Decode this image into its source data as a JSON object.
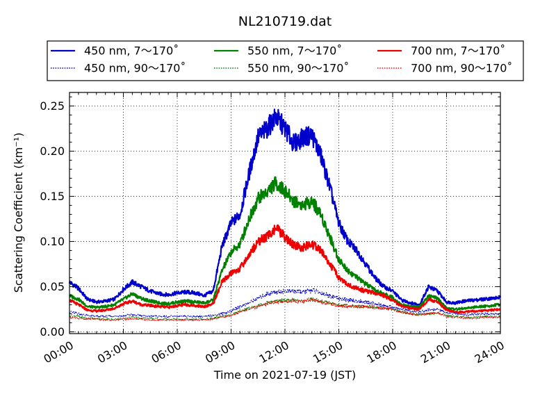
{
  "chart_data": {
    "type": "line",
    "title": "NL210719.dat",
    "xlabel": "Time on 2021-07-19 (JST)",
    "ylabel": "Scattering Coefficient (km⁻¹)",
    "x_unit": "hours",
    "xlim": [
      0,
      24
    ],
    "ylim": [
      -0.002,
      0.265
    ],
    "x_ticks": [
      0,
      3,
      6,
      9,
      12,
      15,
      18,
      21,
      24
    ],
    "x_tick_labels": [
      "00:00",
      "03:00",
      "06:00",
      "09:00",
      "12:00",
      "15:00",
      "18:00",
      "21:00",
      "24:00"
    ],
    "y_ticks": [
      0.0,
      0.05,
      0.1,
      0.15,
      0.2,
      0.25
    ],
    "y_tick_labels": [
      "0.00",
      "0.05",
      "0.10",
      "0.15",
      "0.20",
      "0.25"
    ],
    "grid": true,
    "legend_position": "top",
    "x": [
      0,
      0.5,
      1,
      1.5,
      2,
      2.5,
      3,
      3.5,
      4,
      4.5,
      5,
      5.5,
      6,
      6.5,
      7,
      7.5,
      8,
      8.5,
      9,
      9.5,
      10,
      10.5,
      11,
      11.5,
      12,
      12.5,
      13,
      13.5,
      14,
      14.5,
      15,
      15.5,
      16,
      16.5,
      17,
      17.5,
      18,
      18.5,
      19,
      19.5,
      20,
      20.5,
      21,
      21.5,
      22,
      22.5,
      23,
      23.5,
      24
    ],
    "series": [
      {
        "name": "450 nm, 7～170˚",
        "color": "#0000cc",
        "style": "solid",
        "values": [
          0.055,
          0.048,
          0.036,
          0.033,
          0.034,
          0.036,
          0.047,
          0.055,
          0.05,
          0.045,
          0.042,
          0.041,
          0.043,
          0.044,
          0.043,
          0.04,
          0.045,
          0.095,
          0.12,
          0.13,
          0.175,
          0.215,
          0.225,
          0.238,
          0.225,
          0.208,
          0.215,
          0.218,
          0.195,
          0.16,
          0.12,
          0.1,
          0.09,
          0.075,
          0.06,
          0.05,
          0.045,
          0.035,
          0.032,
          0.03,
          0.05,
          0.045,
          0.033,
          0.032,
          0.034,
          0.035,
          0.036,
          0.037,
          0.038
        ]
      },
      {
        "name": "450 nm, 90～170˚",
        "color": "#0000cc",
        "style": "dotted",
        "values": [
          0.022,
          0.02,
          0.018,
          0.017,
          0.017,
          0.017,
          0.018,
          0.019,
          0.018,
          0.017,
          0.017,
          0.017,
          0.017,
          0.017,
          0.017,
          0.017,
          0.018,
          0.02,
          0.023,
          0.028,
          0.032,
          0.037,
          0.042,
          0.044,
          0.045,
          0.045,
          0.044,
          0.046,
          0.043,
          0.04,
          0.037,
          0.035,
          0.034,
          0.033,
          0.031,
          0.029,
          0.027,
          0.025,
          0.023,
          0.022,
          0.024,
          0.025,
          0.021,
          0.02,
          0.019,
          0.019,
          0.02,
          0.02,
          0.02
        ]
      },
      {
        "name": "550 nm, 7～170˚",
        "color": "#008000",
        "style": "solid",
        "values": [
          0.04,
          0.036,
          0.028,
          0.027,
          0.028,
          0.03,
          0.036,
          0.042,
          0.037,
          0.034,
          0.032,
          0.031,
          0.033,
          0.034,
          0.033,
          0.032,
          0.035,
          0.068,
          0.088,
          0.097,
          0.125,
          0.148,
          0.155,
          0.165,
          0.155,
          0.145,
          0.14,
          0.145,
          0.13,
          0.105,
          0.08,
          0.068,
          0.06,
          0.053,
          0.046,
          0.042,
          0.038,
          0.03,
          0.028,
          0.028,
          0.04,
          0.037,
          0.026,
          0.025,
          0.026,
          0.027,
          0.028,
          0.029,
          0.03
        ]
      },
      {
        "name": "550 nm, 90～170˚",
        "color": "#008000",
        "style": "dotted",
        "values": [
          0.018,
          0.017,
          0.015,
          0.015,
          0.014,
          0.014,
          0.015,
          0.016,
          0.015,
          0.015,
          0.014,
          0.014,
          0.014,
          0.014,
          0.014,
          0.014,
          0.015,
          0.017,
          0.019,
          0.023,
          0.026,
          0.029,
          0.032,
          0.034,
          0.035,
          0.035,
          0.034,
          0.036,
          0.034,
          0.032,
          0.03,
          0.029,
          0.028,
          0.028,
          0.027,
          0.026,
          0.025,
          0.022,
          0.02,
          0.019,
          0.02,
          0.021,
          0.018,
          0.017,
          0.016,
          0.016,
          0.017,
          0.017,
          0.017
        ]
      },
      {
        "name": "700 nm, 7～170˚",
        "color": "#ee0000",
        "style": "solid",
        "values": [
          0.035,
          0.03,
          0.024,
          0.023,
          0.024,
          0.026,
          0.031,
          0.034,
          0.03,
          0.029,
          0.028,
          0.027,
          0.029,
          0.03,
          0.029,
          0.028,
          0.031,
          0.055,
          0.065,
          0.07,
          0.085,
          0.1,
          0.105,
          0.115,
          0.105,
          0.095,
          0.093,
          0.097,
          0.09,
          0.075,
          0.06,
          0.052,
          0.048,
          0.045,
          0.043,
          0.04,
          0.035,
          0.028,
          0.026,
          0.025,
          0.036,
          0.033,
          0.024,
          0.022,
          0.022,
          0.023,
          0.023,
          0.024,
          0.025
        ]
      },
      {
        "name": "700 nm, 90～170˚",
        "color": "#ee0000",
        "style": "dotted",
        "values": [
          0.016,
          0.015,
          0.014,
          0.014,
          0.013,
          0.013,
          0.014,
          0.014,
          0.014,
          0.013,
          0.013,
          0.013,
          0.013,
          0.013,
          0.013,
          0.013,
          0.014,
          0.016,
          0.018,
          0.022,
          0.025,
          0.028,
          0.031,
          0.033,
          0.034,
          0.034,
          0.033,
          0.036,
          0.033,
          0.031,
          0.029,
          0.028,
          0.028,
          0.028,
          0.027,
          0.026,
          0.025,
          0.022,
          0.02,
          0.019,
          0.02,
          0.021,
          0.017,
          0.016,
          0.015,
          0.015,
          0.016,
          0.016,
          0.016
        ]
      }
    ]
  }
}
